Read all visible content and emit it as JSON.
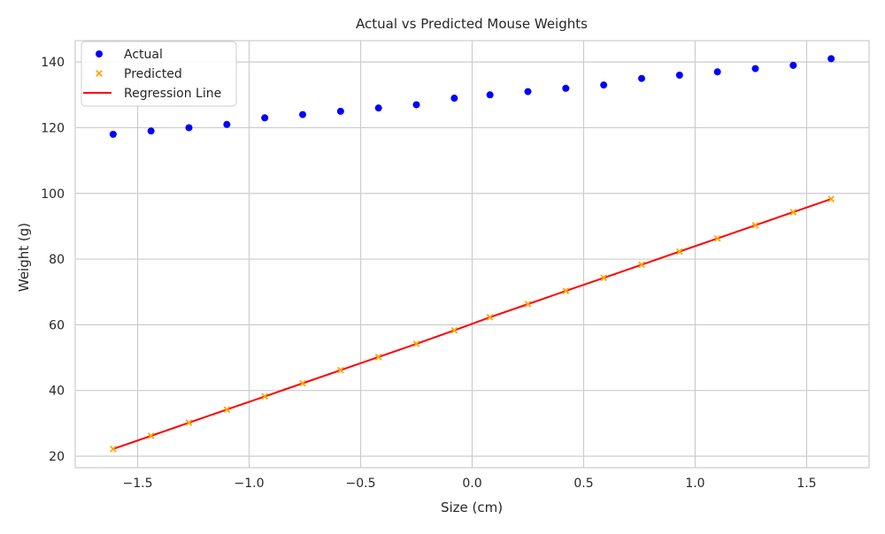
{
  "chart_data": {
    "type": "scatter",
    "title": "Actual vs Predicted Mouse Weights",
    "xlabel": "Size (cm)",
    "ylabel": "Weight (g)",
    "xlim": [
      -1.78,
      1.78
    ],
    "ylim": [
      16.5,
      146.5
    ],
    "x_ticks": [
      -1.5,
      -1.0,
      -0.5,
      0.0,
      0.5,
      1.0,
      1.5
    ],
    "x_tick_labels": [
      "−1.5",
      "−1.0",
      "−0.5",
      "0.0",
      "0.5",
      "1.0",
      "1.5"
    ],
    "y_ticks": [
      20,
      40,
      60,
      80,
      100,
      120,
      140
    ],
    "y_tick_labels": [
      "20",
      "40",
      "60",
      "80",
      "100",
      "120",
      "140"
    ],
    "grid": true,
    "legend_position": "top-left",
    "x": [
      -1.61,
      -1.44,
      -1.27,
      -1.1,
      -0.93,
      -0.76,
      -0.59,
      -0.42,
      -0.25,
      -0.08,
      0.08,
      0.25,
      0.42,
      0.59,
      0.76,
      0.93,
      1.1,
      1.27,
      1.44,
      1.61
    ],
    "series": [
      {
        "name": "Actual",
        "kind": "scatter",
        "marker": "circle",
        "color": "#0000ff",
        "values": [
          118,
          119,
          120,
          121,
          123,
          124,
          125,
          126,
          127,
          129,
          130,
          131,
          132,
          133,
          135,
          136,
          137,
          138,
          139,
          141
        ]
      },
      {
        "name": "Predicted",
        "kind": "scatter",
        "marker": "x",
        "color": "#ffa500",
        "values": [
          22.2,
          26.2,
          30.2,
          34.2,
          38.2,
          42.2,
          46.2,
          50.2,
          54.2,
          58.3,
          62.3,
          66.3,
          70.3,
          74.3,
          78.3,
          82.3,
          86.3,
          90.3,
          94.3,
          98.3
        ]
      },
      {
        "name": "Regression Line",
        "kind": "line",
        "color": "#ff0000",
        "values": [
          22.2,
          26.2,
          30.2,
          34.2,
          38.2,
          42.2,
          46.2,
          50.2,
          54.2,
          58.3,
          62.3,
          66.3,
          70.3,
          74.3,
          78.3,
          82.3,
          86.3,
          90.3,
          94.3,
          98.3
        ]
      }
    ]
  }
}
